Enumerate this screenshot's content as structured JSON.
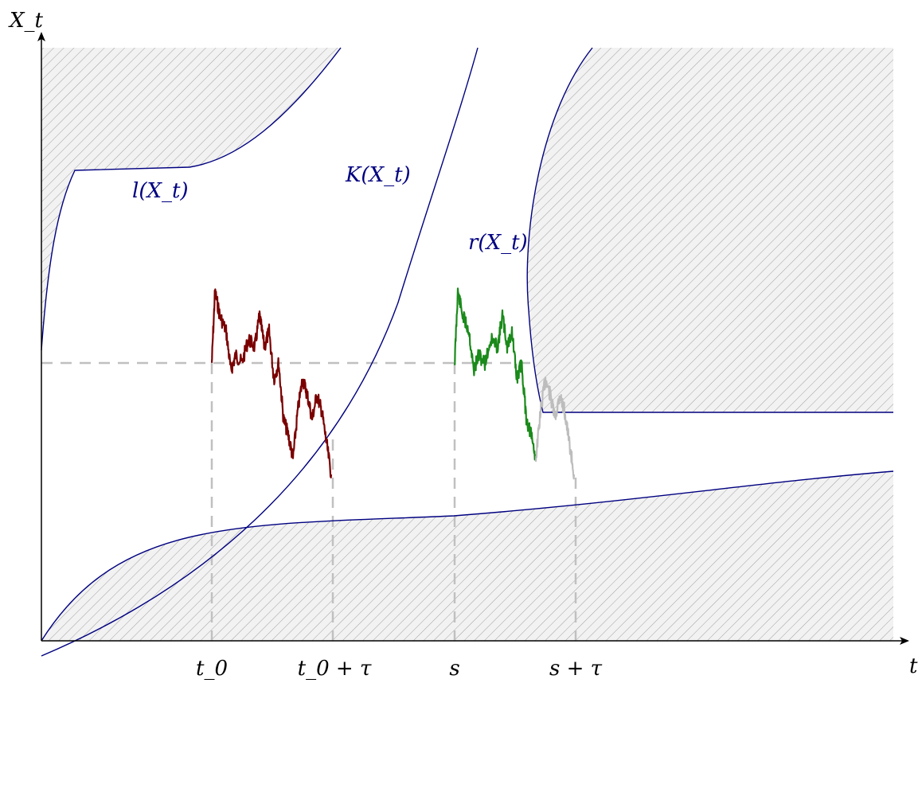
{
  "axes": {
    "y_label": "X_t",
    "x_label": "t"
  },
  "curves": {
    "l_label": "l(X_t)",
    "K_label": "K(X_t)",
    "r_label": "r(X_t)"
  },
  "ticks": {
    "t0": "t_0",
    "t0_plus_tau": "t_0 + τ",
    "s": "s",
    "s_plus_tau": "s + τ"
  },
  "colors": {
    "curve": "#000080",
    "path_red": "#7a0000",
    "path_green": "#1a8a1a",
    "path_gray": "#bdbdbd",
    "guide": "#c0c0c0",
    "hatch": "#9a9a9a",
    "hatch_bg": "#f0f0f0"
  }
}
